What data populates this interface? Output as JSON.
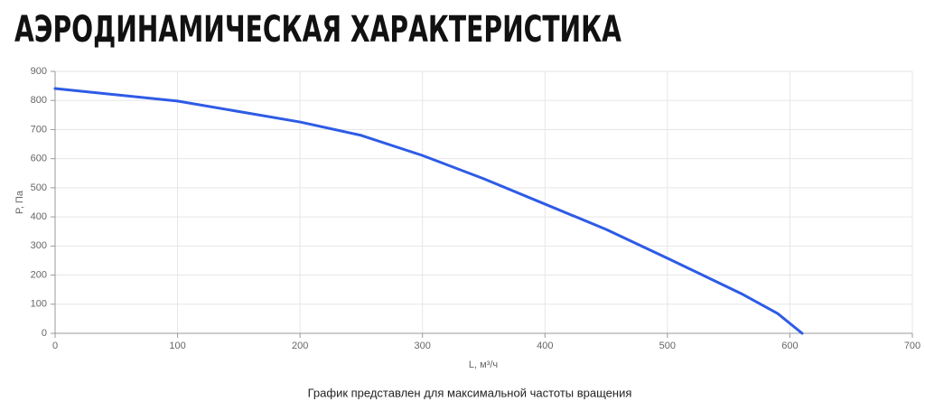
{
  "chart_data": {
    "type": "line",
    "title": "АЭРОДИНАМИЧЕСКАЯ ХАРАКТЕРИСТИКА",
    "xlabel": "L, м³/ч",
    "ylabel": "P, Па",
    "note": "График представлен для максимальной частоты вращения",
    "x": [
      0,
      100,
      200,
      250,
      300,
      350,
      400,
      450,
      500,
      560,
      590,
      610
    ],
    "series": [
      {
        "name": "P",
        "color": "#2e5be6",
        "values": [
          841,
          798,
          726,
          680,
          611,
          531,
          444,
          357,
          258,
          137,
          68,
          0
        ]
      }
    ],
    "xlim": [
      0,
      700
    ],
    "xticks": [
      0,
      100,
      200,
      300,
      400,
      500,
      600,
      700
    ],
    "ylim": [
      0,
      900
    ],
    "yticks": [
      0,
      100,
      200,
      300,
      400,
      500,
      600,
      700,
      800,
      900
    ],
    "grid": true
  }
}
